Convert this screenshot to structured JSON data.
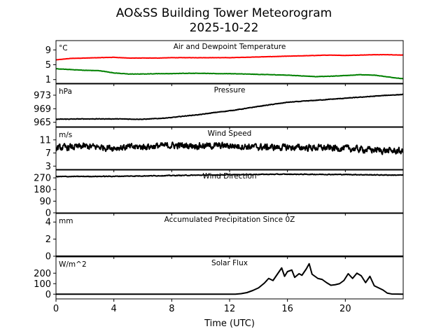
{
  "chart_data": {
    "type": "line",
    "title": "AO&SS Building Tower Meteorogram",
    "subtitle": "2025-10-22",
    "xlabel": "Time (UTC)",
    "x_ticks": [
      "0",
      "4",
      "8",
      "12",
      "16",
      "20"
    ],
    "xlim": [
      0,
      24
    ],
    "panels": [
      {
        "name": "temperature",
        "title": "Air and Dewpoint Temperature",
        "unit": "°C",
        "ylim": [
          0,
          11.5
        ],
        "y_ticks": [
          1,
          5,
          9
        ],
        "y_tick_labels": [
          "1",
          "5",
          "9"
        ],
        "series": [
          {
            "name": "Air Temperature",
            "color": "#ff0000",
            "noise": 0.05,
            "x": [
              0,
              1,
              2,
              3,
              4,
              5,
              6,
              7,
              8,
              9,
              10,
              11,
              12,
              13,
              14,
              15,
              16,
              17,
              18,
              19,
              20,
              21,
              22,
              23,
              24
            ],
            "values": [
              6.3,
              6.7,
              6.8,
              6.9,
              7.0,
              6.8,
              6.8,
              6.8,
              6.9,
              6.9,
              6.9,
              6.9,
              6.9,
              7.0,
              7.1,
              7.2,
              7.3,
              7.4,
              7.5,
              7.6,
              7.5,
              7.6,
              7.7,
              7.7,
              7.6
            ]
          },
          {
            "name": "Dewpoint",
            "color": "#008000",
            "noise": 0.07,
            "x": [
              0,
              1,
              2,
              3,
              4,
              5,
              6,
              7,
              8,
              9,
              10,
              11,
              12,
              13,
              14,
              15,
              16,
              17,
              18,
              19,
              20,
              21,
              22,
              23,
              24
            ],
            "values": [
              3.9,
              3.7,
              3.5,
              3.4,
              2.8,
              2.5,
              2.5,
              2.6,
              2.6,
              2.7,
              2.7,
              2.6,
              2.6,
              2.5,
              2.4,
              2.3,
              2.2,
              2.0,
              1.8,
              1.9,
              2.1,
              2.3,
              2.2,
              1.7,
              1.2
            ]
          }
        ]
      },
      {
        "name": "pressure",
        "title": "Pressure",
        "unit": "hPa",
        "ylim": [
          963.7,
          976.3
        ],
        "y_ticks": [
          965,
          969,
          973
        ],
        "y_tick_labels": [
          "965",
          "969",
          "973"
        ],
        "series": [
          {
            "name": "Pressure",
            "color": "#000000",
            "noise": 0.12,
            "x": [
              0,
              2,
              4,
              6,
              7,
              8,
              9,
              10,
              11,
              12,
              13,
              14,
              15,
              16,
              17,
              18,
              19,
              20,
              21,
              22,
              23,
              24
            ],
            "values": [
              965.9,
              966.0,
              966.0,
              965.9,
              966.1,
              966.4,
              966.9,
              967.3,
              967.9,
              968.4,
              969.0,
              969.7,
              970.3,
              970.9,
              971.2,
              971.5,
              971.8,
              972.1,
              972.4,
              972.7,
              973.0,
              973.2
            ]
          }
        ]
      },
      {
        "name": "wind-speed",
        "title": "Wind Speed",
        "unit": "m/s",
        "ylim": [
          2,
          14.8
        ],
        "y_ticks": [
          3,
          7,
          11
        ],
        "y_tick_labels": [
          "3",
          "7",
          "11"
        ],
        "series": [
          {
            "name": "Wind Speed",
            "color": "#000000",
            "noise": 1.5,
            "x": [
              0,
              2,
              4,
              6,
              8,
              10,
              12,
              14,
              16,
              18,
              20,
              22,
              24
            ],
            "values": [
              8.5,
              9.0,
              8.6,
              8.9,
              9.3,
              9.2,
              9.2,
              8.8,
              8.7,
              8.6,
              8.4,
              7.9,
              7.5
            ]
          }
        ]
      },
      {
        "name": "wind-direction",
        "title": "Wind Direction",
        "unit": "",
        "ylim": [
          0,
          330
        ],
        "y_ticks": [
          0,
          90,
          180,
          270
        ],
        "y_tick_labels": [
          "0",
          "90",
          "180",
          "270"
        ],
        "series": [
          {
            "name": "Wind Direction",
            "color": "#000000",
            "noise": 4,
            "x": [
              0,
              4,
              8,
              12,
              14,
              16,
              18,
              20,
              22,
              24
            ],
            "values": [
              280,
              282,
              288,
              294,
              297,
              298,
              297,
              296,
              293,
              291
            ]
          }
        ]
      },
      {
        "name": "precipitation",
        "title": "Accumulated Precipitation Since 0Z",
        "unit": "mm",
        "ylim": [
          0,
          5
        ],
        "y_ticks": [
          0,
          2,
          4
        ],
        "y_tick_labels": [
          "0",
          "2",
          "4"
        ],
        "series": [
          {
            "name": "Accumulated Precipitation",
            "color": "#000000",
            "noise": 0,
            "x": [
              0,
              24
            ],
            "values": [
              0,
              0
            ]
          }
        ]
      },
      {
        "name": "solar-flux",
        "title": "Solar Flux",
        "unit": "W/m^2",
        "ylim": [
          -45,
          355
        ],
        "y_ticks": [
          0,
          100,
          200
        ],
        "y_tick_labels": [
          "0",
          "100",
          "200"
        ],
        "series": [
          {
            "name": "Solar Flux",
            "color": "#000000",
            "noise": 0,
            "x": [
              0,
              12.4,
              12.8,
              13.2,
              13.6,
              14.0,
              14.4,
              14.7,
              15.0,
              15.3,
              15.6,
              15.8,
              16.0,
              16.3,
              16.5,
              16.8,
              17.0,
              17.3,
              17.5,
              17.7,
              17.9,
              18.1,
              18.4,
              18.7,
              19.0,
              19.3,
              19.6,
              19.9,
              20.2,
              20.5,
              20.8,
              21.1,
              21.4,
              21.7,
              22.0,
              22.3,
              22.6,
              22.9,
              23.2,
              24.0
            ],
            "values": [
              0,
              0,
              5,
              15,
              35,
              60,
              105,
              150,
              130,
              190,
              250,
              170,
              215,
              230,
              160,
              195,
              180,
              240,
              290,
              190,
              170,
              150,
              140,
              110,
              85,
              90,
              100,
              130,
              195,
              150,
              200,
              175,
              110,
              170,
              80,
              60,
              40,
              10,
              2,
              0
            ]
          }
        ]
      }
    ]
  }
}
